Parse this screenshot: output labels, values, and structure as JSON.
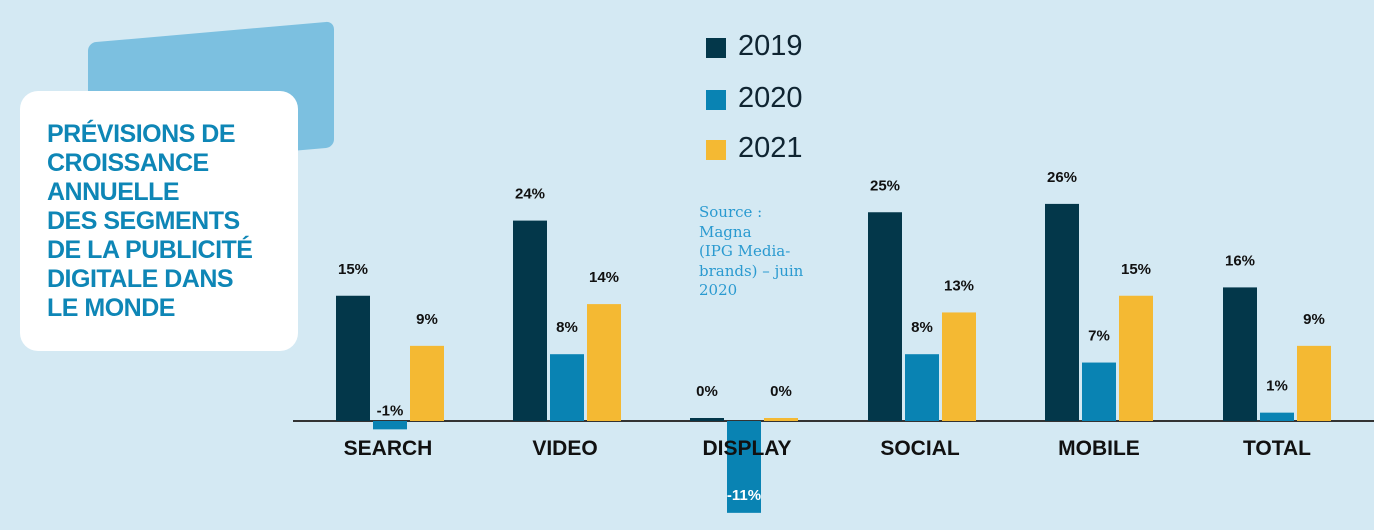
{
  "title_lines": [
    "PRÉVISIONS DE",
    "CROISSANCE",
    "ANNUELLE",
    "DES SEGMENTS",
    "DE LA PUBLICITÉ",
    "DIGITALE DANS",
    "LE MONDE"
  ],
  "source_lines": [
    "Source :",
    "Magna",
    "(IPG Media-",
    "brands) – juin",
    "2020"
  ],
  "colors": {
    "2019": "#03374a",
    "2020": "#0983b3",
    "2021": "#f4b933",
    "axis": "#333333",
    "text": "#111111"
  },
  "chart_data": {
    "type": "bar",
    "title": "PRÉVISIONS DE CROISSANCE ANNUELLE DES SEGMENTS DE LA PUBLICITÉ DIGITALE DANS LE MONDE",
    "categories": [
      "SEARCH",
      "VIDEO",
      "DISPLAY",
      "SOCIAL",
      "MOBILE",
      "TOTAL"
    ],
    "series": [
      {
        "name": "2019",
        "values": [
          15,
          24,
          0,
          25,
          26,
          16
        ],
        "labels": [
          "15%",
          "24%",
          "0%",
          "25%",
          "26%",
          "16%"
        ]
      },
      {
        "name": "2020",
        "values": [
          -1,
          8,
          -11,
          8,
          7,
          1
        ],
        "labels": [
          "-1%",
          "8%",
          "-11%",
          "8%",
          "7%",
          "1%"
        ]
      },
      {
        "name": "2021",
        "values": [
          9,
          14,
          0,
          13,
          15,
          9
        ],
        "labels": [
          "9%",
          "14%",
          "0%",
          "13%",
          "15%",
          "9%"
        ]
      }
    ],
    "legend_position": "top-center",
    "xlabel": "",
    "ylabel": "",
    "grid": false,
    "ylim": [
      -11,
      26
    ]
  }
}
